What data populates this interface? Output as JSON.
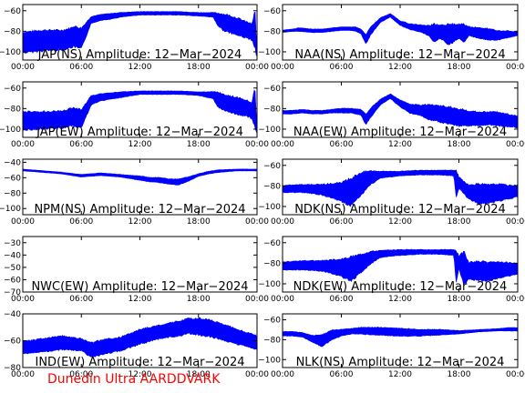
{
  "footer": {
    "credit": "Dunedin Ultra AARDDVARK"
  },
  "colors": {
    "trace": "#0000ff",
    "credit": "#ff0000",
    "axes": "#000000"
  },
  "chart_data": [
    {
      "id": "jap-ns",
      "type": "area",
      "title": "JAP(NS) Amplitude: 12-Mar-2024",
      "xlabel": "",
      "ylabel": "",
      "x_ticks": [
        "00:00",
        "06:00",
        "12:00",
        "18:00",
        "00:00"
      ],
      "xlim": [
        0,
        24
      ],
      "ylim": [
        -108,
        -54
      ],
      "y_ticks": [
        -100,
        -80,
        -60
      ],
      "hours": [
        0,
        2,
        4,
        4.5,
        4.9,
        5.2,
        6,
        7,
        8,
        9,
        10,
        12,
        14,
        16,
        18,
        19.5,
        20,
        20.5,
        21,
        22,
        23,
        23.5,
        23.8,
        23.95,
        24
      ],
      "upper": [
        -82,
        -80,
        -80,
        -79,
        -78,
        -76,
        -78,
        -66,
        -64,
        -63,
        -62,
        -61,
        -61,
        -61,
        -62,
        -62,
        -63,
        -64,
        -65,
        -68,
        -72,
        -74,
        -60,
        -94,
        -94
      ],
      "lower": [
        -100,
        -98,
        -97,
        -96,
        -95,
        -94,
        -96,
        -72,
        -69,
        -68,
        -66,
        -64,
        -64,
        -64,
        -65,
        -66,
        -74,
        -78,
        -80,
        -83,
        -86,
        -88,
        -94,
        -104,
        -104
      ]
    },
    {
      "id": "naa-ns",
      "type": "area",
      "title": "NAA(NS) Amplitude: 12-Mar-2024",
      "xlabel": "",
      "ylabel": "",
      "x_ticks": [
        "00:00",
        "06:00",
        "12:00",
        "18:00",
        "00:00"
      ],
      "xlim": [
        0,
        24
      ],
      "ylim": [
        -108,
        -54
      ],
      "y_ticks": [
        -100,
        -80,
        -60
      ],
      "hours": [
        0,
        1,
        1.6,
        2,
        3,
        4,
        5,
        6,
        7,
        7.5,
        8,
        8.5,
        9,
        10,
        11,
        12,
        13,
        14,
        15,
        15.5,
        16,
        17,
        18,
        18.5,
        19,
        20,
        21,
        22,
        23,
        24
      ],
      "upper": [
        -79,
        -78,
        -77,
        -77,
        -78,
        -78,
        -77,
        -76,
        -76,
        -76,
        -78,
        -84,
        -76,
        -67,
        -63,
        -70,
        -73,
        -74,
        -75,
        -74,
        -75,
        -74,
        -74,
        -74,
        -76,
        -77,
        -78,
        -80,
        -80,
        -81
      ],
      "lower": [
        -81,
        -80,
        -80,
        -80,
        -81,
        -81,
        -80,
        -79,
        -79,
        -80,
        -82,
        -92,
        -83,
        -71,
        -66,
        -74,
        -78,
        -80,
        -84,
        -90,
        -86,
        -92,
        -86,
        -90,
        -84,
        -86,
        -88,
        -88,
        -86,
        -84
      ]
    },
    {
      "id": "jap-ew",
      "type": "area",
      "title": "JAP(EW) Amplitude: 12-Mar-2024",
      "xlabel": "",
      "ylabel": "",
      "x_ticks": [
        "00:00",
        "06:00",
        "12:00",
        "18:00",
        "00:00"
      ],
      "xlim": [
        0,
        24
      ],
      "ylim": [
        -108,
        -54
      ],
      "y_ticks": [
        -100,
        -80,
        -60
      ],
      "hours": [
        0,
        2,
        4,
        4.5,
        5,
        6,
        7,
        8,
        10,
        12,
        14,
        16,
        18,
        19.5,
        20,
        21,
        22,
        23,
        23.5,
        23.8,
        23.95,
        24
      ],
      "upper": [
        -84,
        -84,
        -83,
        -82,
        -80,
        -82,
        -68,
        -66,
        -64,
        -63,
        -63,
        -63,
        -64,
        -64,
        -65,
        -68,
        -70,
        -73,
        -75,
        -60,
        -96,
        -96
      ],
      "lower": [
        -100,
        -99,
        -98,
        -97,
        -96,
        -98,
        -76,
        -72,
        -69,
        -66,
        -66,
        -66,
        -67,
        -70,
        -78,
        -82,
        -85,
        -87,
        -89,
        -96,
        -104,
        -104
      ]
    },
    {
      "id": "naa-ew",
      "type": "area",
      "title": "NAA(EW) Amplitude: 12-Mar-2024",
      "xlabel": "",
      "ylabel": "",
      "x_ticks": [
        "00:00",
        "06:00",
        "12:00",
        "18:00",
        "00:00"
      ],
      "xlim": [
        0,
        24
      ],
      "ylim": [
        -108,
        -54
      ],
      "y_ticks": [
        -100,
        -80,
        -60
      ],
      "hours": [
        0,
        1,
        2,
        3,
        4,
        5,
        6,
        7,
        8,
        8.5,
        9,
        10,
        11,
        12,
        13,
        14,
        15,
        16,
        17,
        18,
        19,
        20,
        21,
        22,
        23,
        24
      ],
      "upper": [
        -82,
        -82,
        -81,
        -82,
        -82,
        -81,
        -80,
        -80,
        -81,
        -86,
        -80,
        -71,
        -66,
        -72,
        -76,
        -77,
        -77,
        -78,
        -79,
        -81,
        -83,
        -84,
        -84,
        -84,
        -86,
        -88
      ],
      "lower": [
        -85,
        -85,
        -84,
        -85,
        -85,
        -84,
        -84,
        -84,
        -86,
        -95,
        -88,
        -76,
        -70,
        -78,
        -84,
        -86,
        -90,
        -92,
        -94,
        -96,
        -96,
        -96,
        -95,
        -96,
        -97,
        -98
      ]
    },
    {
      "id": "npm-ns",
      "type": "area",
      "title": "NPM(NS) Amplitude: 12-Mar-2024",
      "xlabel": "",
      "ylabel": "",
      "x_ticks": [
        "00:00",
        "06:00",
        "12:00",
        "18:00",
        "00:00"
      ],
      "xlim": [
        0,
        24
      ],
      "ylim": [
        -108,
        -36
      ],
      "y_ticks": [
        -100,
        -80,
        -60,
        -40
      ],
      "hours": [
        0,
        2,
        4,
        6,
        7,
        8,
        9,
        10,
        11,
        12,
        13,
        14,
        15,
        16,
        17,
        18,
        19,
        20,
        22,
        24
      ],
      "upper": [
        -49,
        -51,
        -53,
        -56,
        -55,
        -54,
        -55,
        -56,
        -57,
        -58,
        -60,
        -60,
        -62,
        -62,
        -59,
        -55,
        -52,
        -50,
        -49,
        -49
      ],
      "lower": [
        -51,
        -53,
        -55,
        -59,
        -58,
        -57,
        -58,
        -59,
        -61,
        -63,
        -65,
        -66,
        -68,
        -69,
        -64,
        -58,
        -55,
        -53,
        -51,
        -51
      ]
    },
    {
      "id": "ndk-ns",
      "type": "area",
      "title": "NDK(NS) Amplitude: 12-Mar-2024",
      "xlabel": "",
      "ylabel": "",
      "x_ticks": [
        "00:00",
        "06:00",
        "12:00",
        "18:00",
        "00:00"
      ],
      "xlim": [
        0,
        24
      ],
      "ylim": [
        -108,
        -54
      ],
      "y_ticks": [
        -100,
        -80,
        -60
      ],
      "hours": [
        0,
        2,
        4,
        6,
        7,
        8,
        9,
        10,
        12,
        14,
        16,
        17.5,
        17.7,
        18,
        19,
        20,
        21,
        22,
        23,
        24
      ],
      "upper": [
        -80,
        -79,
        -79,
        -78,
        -74,
        -68,
        -66,
        -66,
        -66,
        -65,
        -65,
        -65,
        -66,
        -72,
        -80,
        -79,
        -80,
        -79,
        -80,
        -80
      ],
      "lower": [
        -86,
        -86,
        -88,
        -94,
        -98,
        -88,
        -78,
        -72,
        -70,
        -69,
        -69,
        -70,
        -90,
        -82,
        -92,
        -96,
        -96,
        -94,
        -92,
        -90
      ]
    },
    {
      "id": "nwc-ew",
      "type": "area",
      "title": "NWC(EW) Amplitude: 12-Mar-2024",
      "xlabel": "",
      "ylabel": "",
      "x_ticks": [
        "00:00",
        "06:00",
        "12:00",
        "18:00",
        "00:00"
      ],
      "xlim": [
        0,
        24
      ],
      "ylim": [
        -70,
        -25
      ],
      "y_ticks": [
        -70,
        -60,
        -50,
        -40,
        -30
      ],
      "hours": [],
      "upper": [],
      "lower": []
    },
    {
      "id": "ndk-ew",
      "type": "area",
      "title": "NDK(EW) Amplitude: 12-Mar-2024",
      "xlabel": "",
      "ylabel": "",
      "x_ticks": [
        "00:00",
        "06:00",
        "12:00",
        "18:00",
        "00:00"
      ],
      "xlim": [
        0,
        24
      ],
      "ylim": [
        -108,
        -54
      ],
      "y_ticks": [
        -100,
        -80,
        -60
      ],
      "hours": [
        0,
        2,
        4,
        6,
        7,
        8,
        9,
        10,
        12,
        14,
        16,
        17.5,
        17.7,
        18,
        18.5,
        19,
        20,
        21,
        22,
        23,
        24
      ],
      "upper": [
        -79,
        -78,
        -78,
        -77,
        -75,
        -72,
        -69,
        -68,
        -67,
        -67,
        -67,
        -67,
        -68,
        -74,
        -70,
        -80,
        -79,
        -80,
        -80,
        -80,
        -81
      ],
      "lower": [
        -86,
        -86,
        -87,
        -92,
        -96,
        -88,
        -80,
        -74,
        -72,
        -71,
        -71,
        -72,
        -98,
        -84,
        -100,
        -94,
        -96,
        -96,
        -94,
        -92,
        -90
      ]
    },
    {
      "id": "ind-ew",
      "type": "area",
      "title": "IND(EW) Amplitude: 12-Mar-2024",
      "xlabel": "",
      "ylabel": "",
      "x_ticks": [
        "00:00",
        "06:00",
        "12:00",
        "18:00",
        "00:00"
      ],
      "xlim": [
        0,
        24
      ],
      "ylim": [
        -80,
        -40
      ],
      "y_ticks": [
        -80,
        -60,
        -40
      ],
      "hours": [
        0,
        2,
        4,
        6,
        7,
        8,
        10,
        12,
        14,
        16,
        17,
        18,
        19,
        20,
        22,
        24
      ],
      "upper": [
        -61,
        -59,
        -57,
        -59,
        -62,
        -60,
        -58,
        -52,
        -49,
        -46,
        -44,
        -44,
        -45,
        -47,
        -52,
        -57
      ],
      "lower": [
        -69,
        -68,
        -66,
        -67,
        -72,
        -70,
        -67,
        -62,
        -58,
        -56,
        -54,
        -55,
        -56,
        -58,
        -62,
        -66
      ]
    },
    {
      "id": "nlk-ns",
      "type": "area",
      "title": "NLK(NS) Amplitude: 12-Mar-2024",
      "xlabel": "",
      "ylabel": "",
      "x_ticks": [
        "00:00",
        "06:00",
        "12:00",
        "18:00",
        "00:00"
      ],
      "xlim": [
        0,
        24
      ],
      "ylim": [
        -108,
        -54
      ],
      "y_ticks": [
        -100,
        -80,
        -60
      ],
      "hours": [
        0,
        1,
        2,
        3,
        4,
        5,
        6,
        7,
        8,
        10,
        12,
        14,
        16,
        18,
        20,
        22,
        23,
        24
      ],
      "upper": [
        -72,
        -72,
        -73,
        -76,
        -76,
        -71,
        -70,
        -69,
        -68,
        -68,
        -69,
        -70,
        -70,
        -71,
        -70,
        -69,
        -68,
        -68
      ],
      "lower": [
        -76,
        -76,
        -77,
        -82,
        -86,
        -80,
        -76,
        -74,
        -74,
        -75,
        -76,
        -76,
        -75,
        -74,
        -72,
        -71,
        -71,
        -71
      ]
    }
  ]
}
